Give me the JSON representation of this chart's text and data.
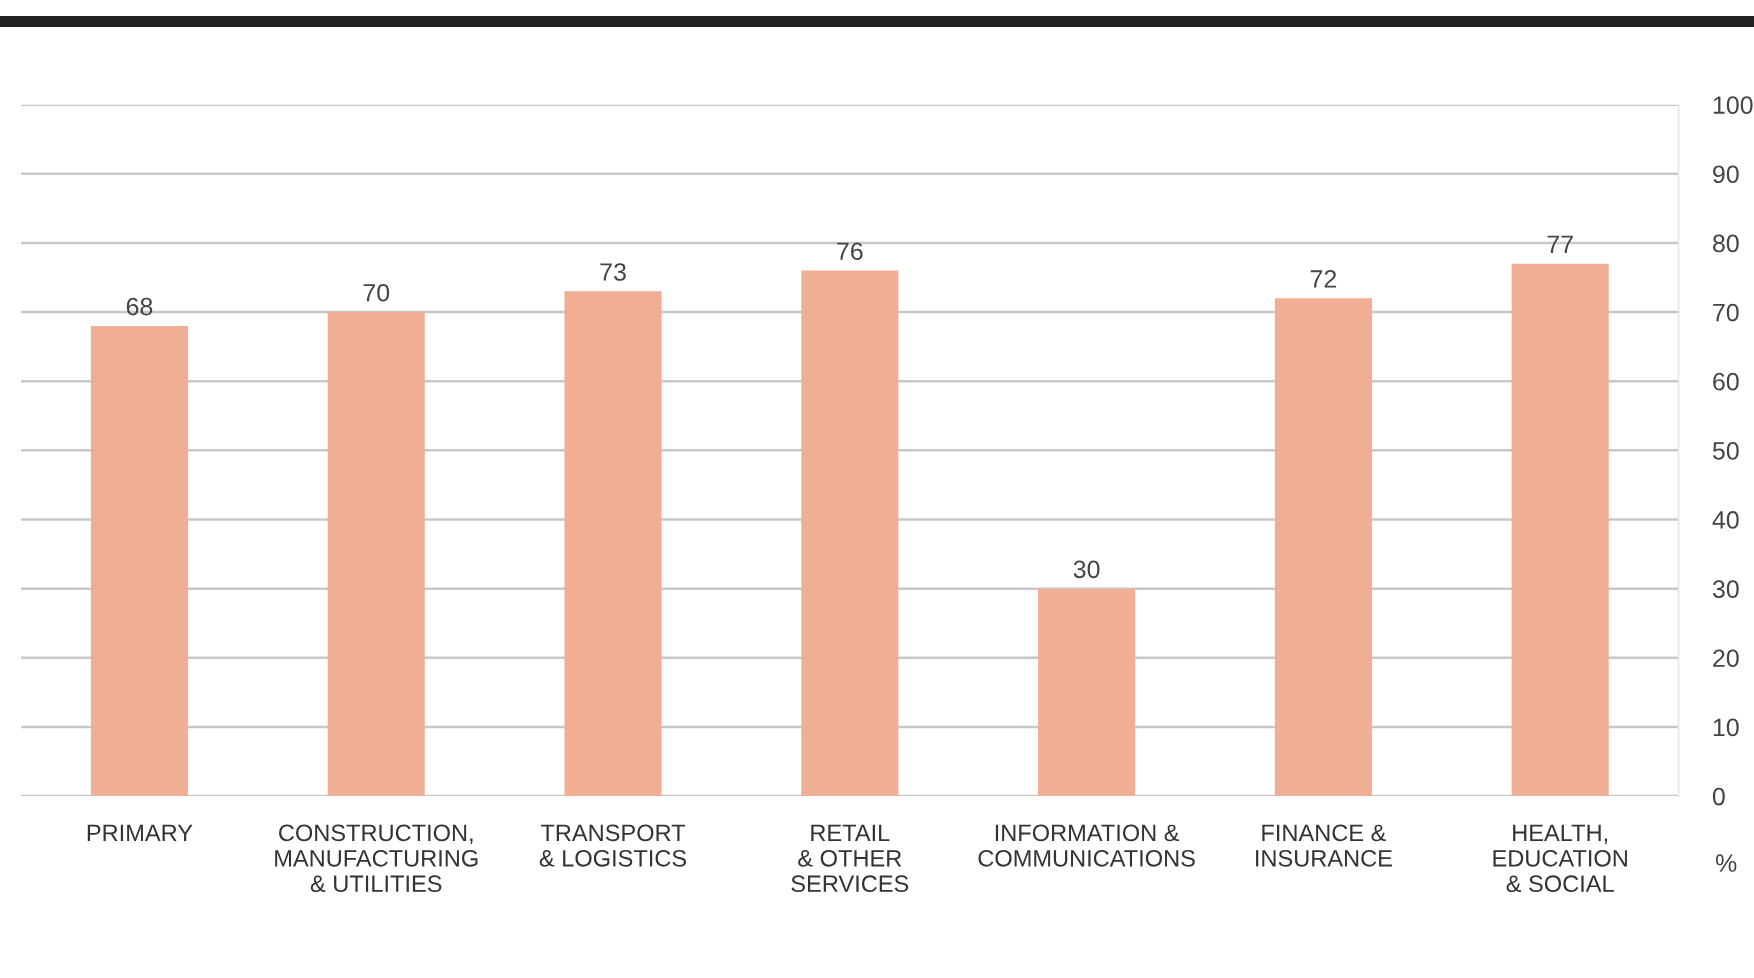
{
  "chart_data": {
    "type": "bar",
    "categories": [
      "PRIMARY",
      "CONSTRUCTION,\nMANUFACTURING\n& UTILITIES",
      "TRANSPORT\n& LOGISTICS",
      "RETAIL\n& OTHER\nSERVICES",
      "INFORMATION &\nCOMMUNICATIONS",
      "FINANCE &\nINSURANCE",
      "HEALTH,\nEDUCATION\n& SOCIAL"
    ],
    "values": [
      68,
      70,
      73,
      76,
      30,
      72,
      77
    ],
    "color": "#f0af94",
    "ylabel": "%",
    "ylim": [
      0,
      100
    ],
    "yticks": [
      0,
      10,
      20,
      30,
      40,
      50,
      60,
      70,
      80,
      90,
      100
    ],
    "grid": "y",
    "data_labels": true,
    "legend": false
  }
}
